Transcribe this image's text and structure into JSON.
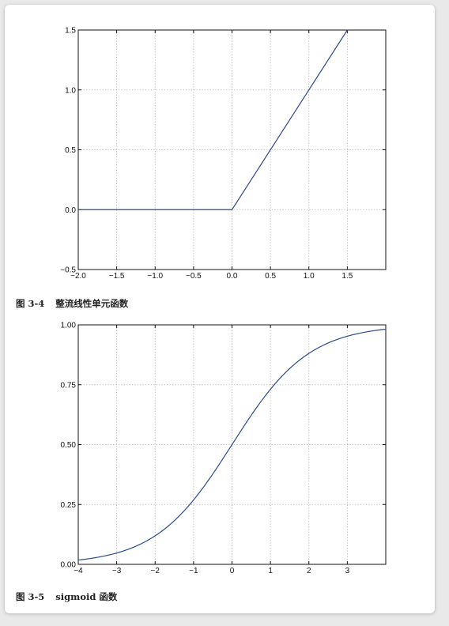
{
  "figures": [
    {
      "caption_number": "图 3-4",
      "caption_text": "整流线性单元函数"
    },
    {
      "caption_number": "图 3-5",
      "caption_text": "sigmoid 函数"
    }
  ],
  "chart_data": [
    {
      "type": "line",
      "function": "relu",
      "title": "",
      "xlabel": "",
      "ylabel": "",
      "xlim": [
        -2.0,
        2.0
      ],
      "ylim": [
        -0.5,
        1.5
      ],
      "xticks": [
        -2.0,
        -1.5,
        -1.0,
        -0.5,
        0.0,
        0.5,
        1.0,
        1.5
      ],
      "xtick_labels": [
        "−2.0",
        "−1.5",
        "−1.0",
        "−0.5",
        "0.0",
        "0.5",
        "1.0",
        "1.5"
      ],
      "yticks": [
        -0.5,
        0.0,
        0.5,
        1.0,
        1.5
      ],
      "ytick_labels": [
        "−0.5",
        "0.0",
        "0.5",
        "1.0",
        "1.5"
      ],
      "grid": true,
      "line_color": "#2a4b8d",
      "series": [
        {
          "x": [
            -2.0,
            0.0,
            1.5
          ],
          "y": [
            0.0,
            0.0,
            1.5
          ]
        }
      ]
    },
    {
      "type": "line",
      "function": "sigmoid",
      "title": "",
      "xlabel": "",
      "ylabel": "",
      "xlim": [
        -4,
        4
      ],
      "ylim": [
        0.0,
        1.0
      ],
      "xticks": [
        -4,
        -3,
        -2,
        -1,
        0,
        1,
        2,
        3
      ],
      "xtick_labels": [
        "−4",
        "−3",
        "−2",
        "−1",
        "0",
        "1",
        "2",
        "3"
      ],
      "yticks": [
        0.0,
        0.25,
        0.5,
        0.75,
        1.0
      ],
      "ytick_labels": [
        "0.00",
        "0.25",
        "0.50",
        "0.75",
        "1.00"
      ],
      "grid": true,
      "line_color": "#2a4b8d",
      "series": [
        {
          "x": [
            -4,
            -3.5,
            -3,
            -2.5,
            -2,
            -1.5,
            -1,
            -0.5,
            0,
            0.5,
            1,
            1.5,
            2,
            2.5,
            3,
            3.5,
            4
          ],
          "y": [
            0.018,
            0.029,
            0.047,
            0.076,
            0.119,
            0.182,
            0.269,
            0.378,
            0.5,
            0.622,
            0.731,
            0.818,
            0.881,
            0.924,
            0.953,
            0.971,
            0.982
          ]
        }
      ]
    }
  ]
}
